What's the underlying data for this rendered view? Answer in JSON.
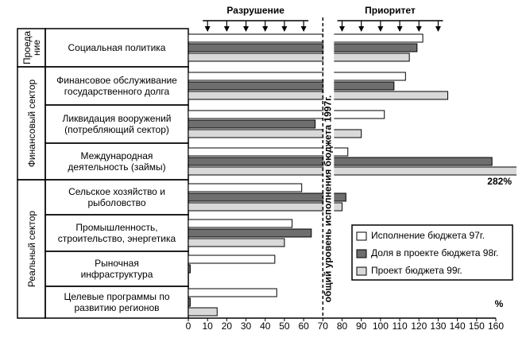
{
  "chart_data": {
    "type": "bar",
    "orientation": "horizontal",
    "header_labels": [
      "Разрушение",
      "Приоритет"
    ],
    "groups": [
      "Проеда\nние",
      "Финансовый сектор",
      "Реальный сектор"
    ],
    "categories": [
      "Социальная политика",
      "Финансовое обслуживание\nгосударственного долга",
      "Ликвидация вооружений\n(потребляющий сектор)",
      "Международная\nдеятельность (займы)",
      "Сельское хозяйство и\nрыболовство",
      "Промышленность,\nстроительство, энергетика",
      "Рыночная\nинфраструктура",
      "Целевые программы по\nразвитию регионов"
    ],
    "series": [
      {
        "name": "Исполнение бюджета 97г.",
        "color": "#ffffff",
        "values": [
          122,
          113,
          102,
          83,
          59,
          54,
          45,
          46
        ]
      },
      {
        "name": "Доля в проекте бюджета 98г.",
        "color": "#6e6e6e",
        "values": [
          119,
          107,
          66,
          158,
          82,
          64,
          1,
          1
        ]
      },
      {
        "name": "Проект бюджета 99г.",
        "color": "#d9d9d9",
        "values": [
          115,
          135,
          90,
          282,
          80,
          50,
          0,
          15
        ],
        "value_labels": [
          null,
          null,
          null,
          "282%",
          null,
          null,
          null,
          null
        ]
      }
    ],
    "reference_line": 70,
    "reference_label": "общий уровень исполнения бюджета 1997г.",
    "xlabel": "%",
    "xlim": [
      0,
      160
    ],
    "xticks": [
      0,
      10,
      20,
      30,
      40,
      50,
      60,
      70,
      80,
      90,
      100,
      110,
      120,
      130,
      140,
      150,
      160
    ],
    "legend": "lower right"
  }
}
